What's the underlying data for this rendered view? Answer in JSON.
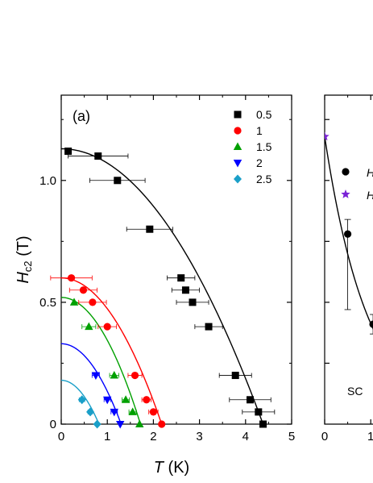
{
  "chart_data": [
    {
      "type": "scatter",
      "panel_label": "(a)",
      "xlabel": {
        "main": "T",
        "unit": " (K)"
      },
      "ylabel": {
        "main": "H",
        "sub": "c2",
        "unit": " (T)"
      },
      "xlim": [
        0,
        5
      ],
      "ylim": [
        0,
        1.35
      ],
      "xticks": [
        0,
        1,
        2,
        3,
        4,
        5
      ],
      "yticks": [
        0,
        0.5,
        1.0
      ],
      "ytick_labels": [
        "0",
        "0.5",
        "1.0"
      ],
      "grid": false,
      "legend_position": "top-right",
      "series": [
        {
          "name": "0.5",
          "marker": "square",
          "color": "#000000",
          "points": [
            {
              "x": 0.15,
              "y": 1.12,
              "xerr": 0
            },
            {
              "x": 0.8,
              "y": 1.1,
              "xerr": 0.65
            },
            {
              "x": 1.22,
              "y": 1.0,
              "xerr": 0.6
            },
            {
              "x": 1.92,
              "y": 0.8,
              "xerr": 0.5
            },
            {
              "x": 2.6,
              "y": 0.6,
              "xerr": 0.3
            },
            {
              "x": 2.7,
              "y": 0.55,
              "xerr": 0.3
            },
            {
              "x": 2.85,
              "y": 0.5,
              "xerr": 0.35
            },
            {
              "x": 3.2,
              "y": 0.4,
              "xerr": 0.3
            },
            {
              "x": 3.78,
              "y": 0.2,
              "xerr": 0.35
            },
            {
              "x": 4.1,
              "y": 0.1,
              "xerr": 0.45
            },
            {
              "x": 4.28,
              "y": 0.05,
              "xerr": 0.35
            },
            {
              "x": 4.38,
              "y": 0.0,
              "xerr": 0
            }
          ],
          "fit_y0": 1.13,
          "fit_tc": 4.38
        },
        {
          "name": "1",
          "marker": "circle",
          "color": "#ff0000",
          "points": [
            {
              "x": 0.22,
              "y": 0.6,
              "xerr": 0.45
            },
            {
              "x": 0.48,
              "y": 0.55,
              "xerr": 0.3
            },
            {
              "x": 0.68,
              "y": 0.5,
              "xerr": 0.3
            },
            {
              "x": 1.0,
              "y": 0.4,
              "xerr": 0.2
            },
            {
              "x": 1.6,
              "y": 0.2,
              "xerr": 0.15
            },
            {
              "x": 1.85,
              "y": 0.1,
              "xerr": 0.1
            },
            {
              "x": 2.0,
              "y": 0.05,
              "xerr": 0.1
            },
            {
              "x": 2.18,
              "y": 0.0,
              "xerr": 0
            }
          ],
          "fit_y0": 0.6,
          "fit_tc": 2.18
        },
        {
          "name": "1.5",
          "marker": "triangle-up",
          "color": "#00a000",
          "points": [
            {
              "x": 0.28,
              "y": 0.5,
              "xerr": 0
            },
            {
              "x": 0.6,
              "y": 0.4,
              "xerr": 0.15
            },
            {
              "x": 1.15,
              "y": 0.2,
              "xerr": 0.1
            },
            {
              "x": 1.4,
              "y": 0.1,
              "xerr": 0.08
            },
            {
              "x": 1.55,
              "y": 0.05,
              "xerr": 0.08
            },
            {
              "x": 1.7,
              "y": 0.0,
              "xerr": 0
            }
          ],
          "fit_y0": 0.52,
          "fit_tc": 1.72
        },
        {
          "name": "2",
          "marker": "triangle-down",
          "color": "#0000ff",
          "points": [
            {
              "x": 0.75,
              "y": 0.2,
              "xerr": 0.08
            },
            {
              "x": 1.0,
              "y": 0.1,
              "xerr": 0.07
            },
            {
              "x": 1.15,
              "y": 0.05,
              "xerr": 0.07
            },
            {
              "x": 1.28,
              "y": 0.0,
              "xerr": 0
            }
          ],
          "fit_y0": 0.33,
          "fit_tc": 1.3
        },
        {
          "name": "2.5",
          "marker": "diamond",
          "color": "#1a9fc8",
          "points": [
            {
              "x": 0.45,
              "y": 0.1,
              "xerr": 0.06
            },
            {
              "x": 0.63,
              "y": 0.05,
              "xerr": 0.05
            },
            {
              "x": 0.78,
              "y": 0.0,
              "xerr": 0
            }
          ],
          "fit_y0": 0.18,
          "fit_tc": 0.82
        }
      ]
    },
    {
      "type": "scatter",
      "panel_label": "",
      "xticks": [
        0,
        1
      ],
      "xlim": [
        0,
        5
      ],
      "ylim": [
        0,
        1.35
      ],
      "legend_entries": [
        {
          "text": "H",
          "marker": "circle",
          "color": "#000000"
        },
        {
          "text": "H",
          "marker": "star",
          "color": "#7a22d6"
        }
      ],
      "annotation": "SC",
      "series": [
        {
          "marker": "circle",
          "color": "#000000",
          "points": [
            {
              "x": 0.5,
              "y": 0.78,
              "yerr_low": 0.31,
              "yerr_high": 0.06
            },
            {
              "x": 1.05,
              "y": 0.41,
              "yerr_low": 0.04,
              "yerr_high": 0.04
            }
          ]
        },
        {
          "marker": "star",
          "color": "#7a22d6",
          "points": [
            {
              "x": 0.0,
              "y": 1.18
            }
          ]
        }
      ]
    }
  ]
}
